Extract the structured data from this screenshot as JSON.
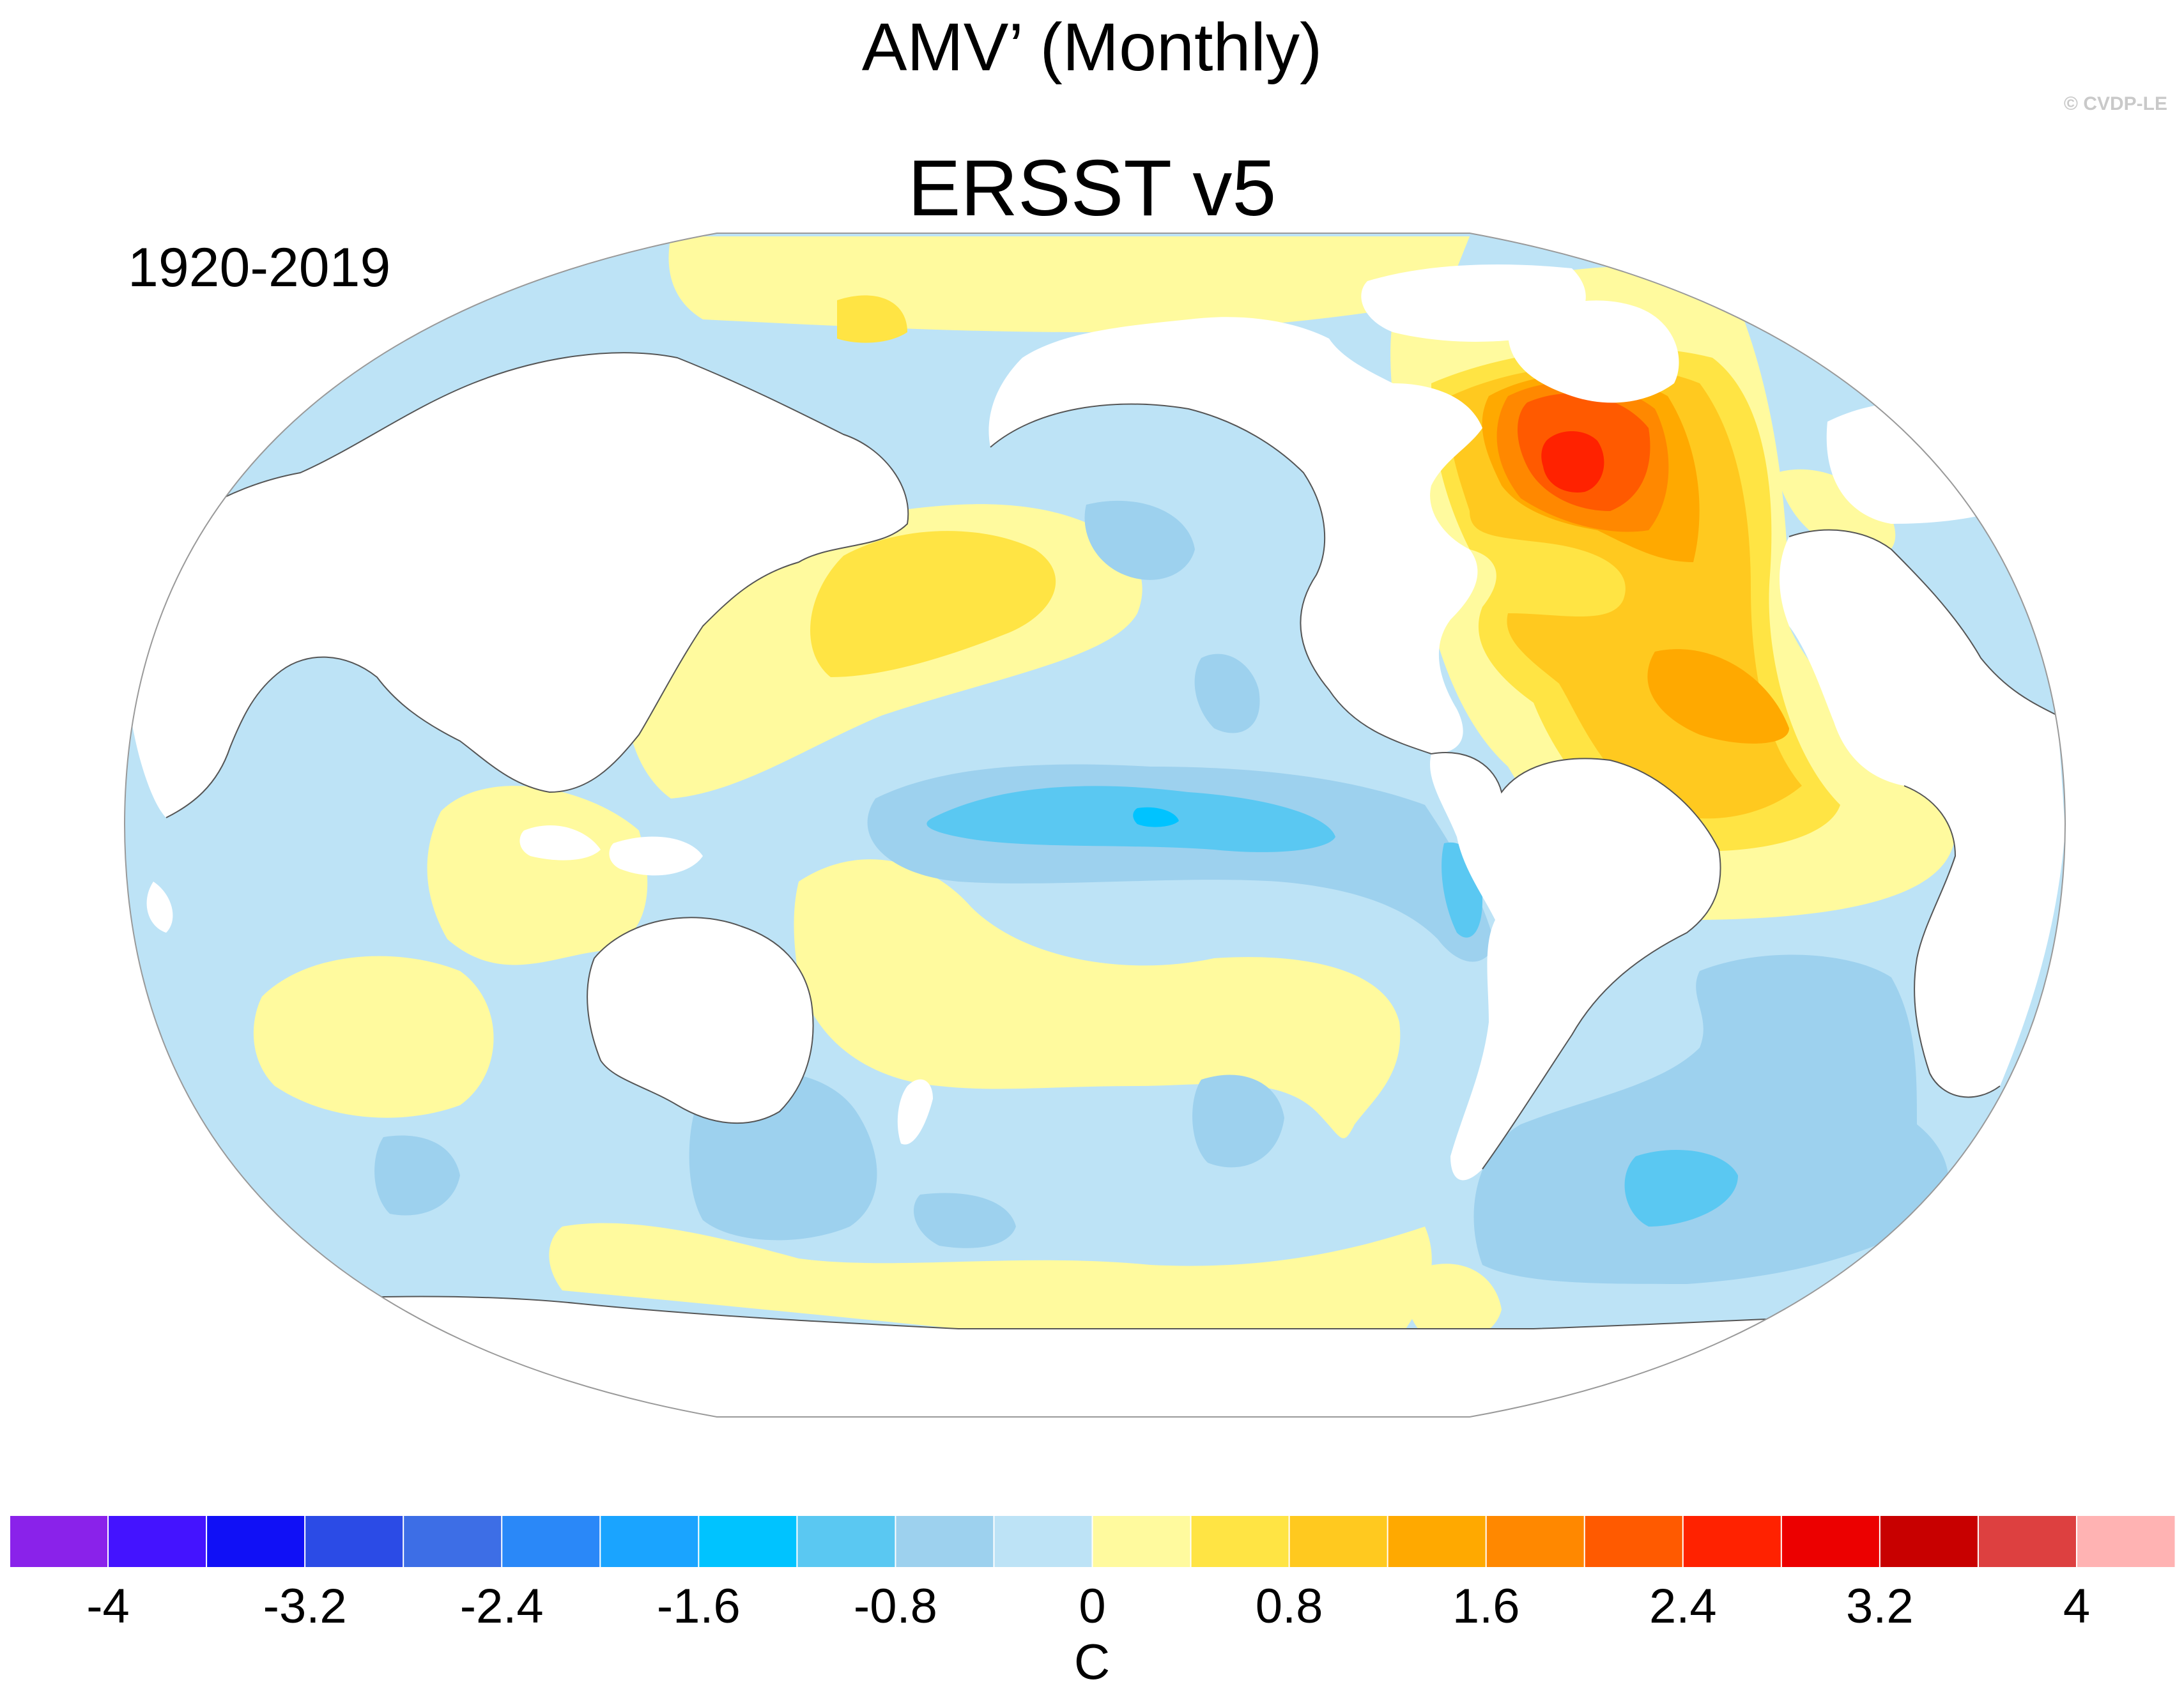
{
  "title": "AMV’ (Monthly)",
  "subtitle": "ERSST v5",
  "period": "1920-2019",
  "credit": "© CVDP-LE",
  "colorbar": {
    "unit": "C",
    "min": -4.4,
    "max": 4.4,
    "step": 0.4,
    "colors": [
      "#8a22ea",
      "#4413ff",
      "#1010f6",
      "#2b4be6",
      "#3d6ee6",
      "#2a88f8",
      "#1aa4ff",
      "#00c3ff",
      "#5ac8f2",
      "#9dd1ee",
      "#bde3f6",
      "#fffa9e",
      "#ffe444",
      "#ffc91f",
      "#ffa900",
      "#ff8800",
      "#ff5a00",
      "#ff2200",
      "#ec0000",
      "#c80000",
      "#dd4040",
      "#ffb3b3"
    ],
    "tick_values": [
      -4,
      -3.2,
      -2.4,
      -1.6,
      -0.8,
      0,
      0.8,
      1.6,
      2.4,
      3.2,
      4
    ],
    "tick_labels": [
      "-4",
      "-3.2",
      "-2.4",
      "-1.6",
      "-0.8",
      "0",
      "0.8",
      "1.6",
      "2.4",
      "3.2",
      "4"
    ]
  },
  "map_layers": {
    "ocean_base": "#bde3f6",
    "warm_weak": "#fffa9e",
    "warm_mid": "#ffe444",
    "warm_strong": "#ffc91f",
    "orange": "#ffa900",
    "dark_orange": "#ff8800",
    "red_orange": "#ff5a00",
    "red": "#ff2200",
    "cool_mid": "#9dd1ee",
    "cool_strong": "#5ac8f2",
    "cool_max": "#00c3ff",
    "land": "#ffffff",
    "coast": "#555555",
    "frame": "#999999"
  }
}
